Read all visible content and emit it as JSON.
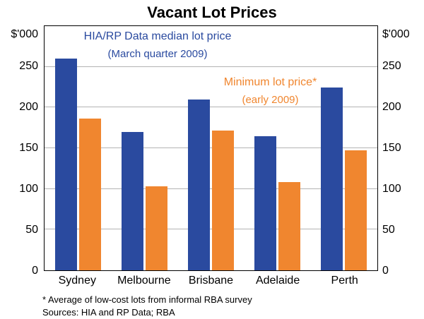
{
  "page": {
    "title": "Vacant Lot Prices"
  },
  "chart_data": {
    "type": "bar",
    "title": "Vacant Lot Prices",
    "categories": [
      "Sydney",
      "Melbourne",
      "Brisbane",
      "Adelaide",
      "Perth"
    ],
    "series": [
      {
        "id": "median",
        "name": "HIA/RP Data median lot price (March quarter 2009)",
        "color": "#2a4a9f",
        "values": [
          260,
          170,
          210,
          165,
          225
        ]
      },
      {
        "id": "minimum",
        "name": "Minimum lot price* (early 2009)",
        "color": "#f0862f",
        "values": [
          186,
          103,
          172,
          108,
          147
        ]
      }
    ],
    "xlabel": "",
    "ylabel": "$'000",
    "ylabel_right": "$'000",
    "ylim": [
      0,
      300
    ],
    "yticks": [
      0,
      50,
      100,
      150,
      200,
      250
    ],
    "grid": true,
    "legend_position": "inside"
  },
  "annotations": {
    "series1_label": "HIA/RP Data median lot price",
    "series1_sub": "(March quarter 2009)",
    "series2_label": "Minimum lot price*",
    "series2_sub": "(early 2009)"
  },
  "footnotes": {
    "note": "* Average of low-cost lots from informal RBA survey",
    "sources": "Sources: HIA and RP Data; RBA"
  },
  "colors": {
    "series1": "#2a4a9f",
    "series2": "#f0862f",
    "gridline": "#b3b3b3",
    "axis": "#000000"
  }
}
